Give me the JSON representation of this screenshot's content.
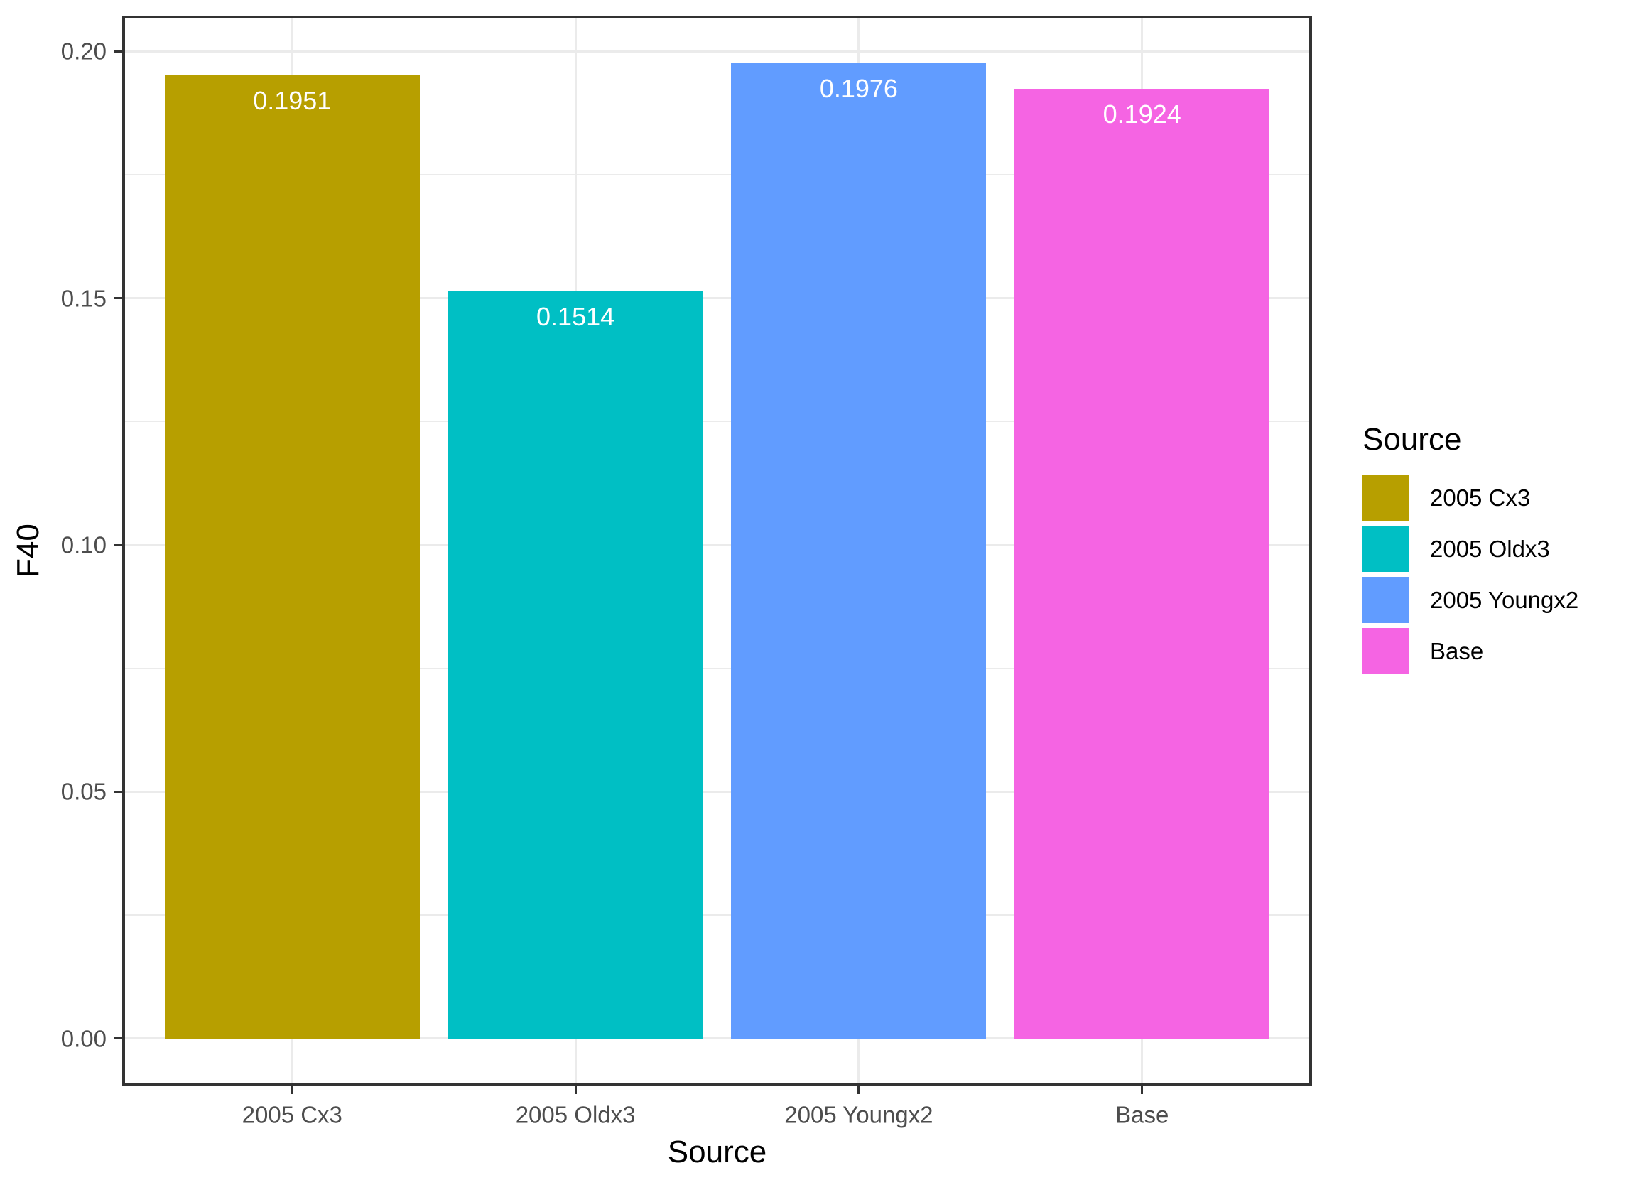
{
  "chart_data": {
    "type": "bar",
    "title": "",
    "xlabel": "Source",
    "ylabel": "F40",
    "categories": [
      "2005 Cx3",
      "2005 Oldx3",
      "2005 Youngx2",
      "Base"
    ],
    "values": [
      0.1951,
      0.1514,
      0.1976,
      0.1924
    ],
    "bar_labels": [
      "0.1951",
      "0.1514",
      "0.1976",
      "0.1924"
    ],
    "bar_colors": [
      "#B79F00",
      "#00BFC4",
      "#619CFF",
      "#F564E3"
    ],
    "ylim": [
      -0.0095,
      0.2072
    ],
    "y_major_ticks": [
      0.0,
      0.05,
      0.1,
      0.15,
      0.2
    ],
    "y_tick_labels": [
      "0.00",
      "0.05",
      "0.10",
      "0.15",
      "0.20"
    ],
    "y_minor_ticks": [
      0.025,
      0.075,
      0.125,
      0.175
    ],
    "grid": {
      "horizontal_major": true,
      "horizontal_minor": true,
      "vertical_major": true,
      "vertical_minor": false
    },
    "legend": {
      "title": "Source",
      "position": "right",
      "entries": [
        {
          "label": "2005 Cx3",
          "color": "#B79F00"
        },
        {
          "label": "2005 Oldx3",
          "color": "#00BFC4"
        },
        {
          "label": "2005 Youngx2",
          "color": "#619CFF"
        },
        {
          "label": "Base",
          "color": "#F564E3"
        }
      ]
    }
  },
  "style_colors": {
    "background": "#FFFFFF",
    "grid": "#EBEBEB",
    "panel_border": "#333333",
    "tick": "#333333",
    "tick_label": "#4D4D4D",
    "axis_title": "#000000",
    "bar_value_label": "#FFFFFF"
  }
}
